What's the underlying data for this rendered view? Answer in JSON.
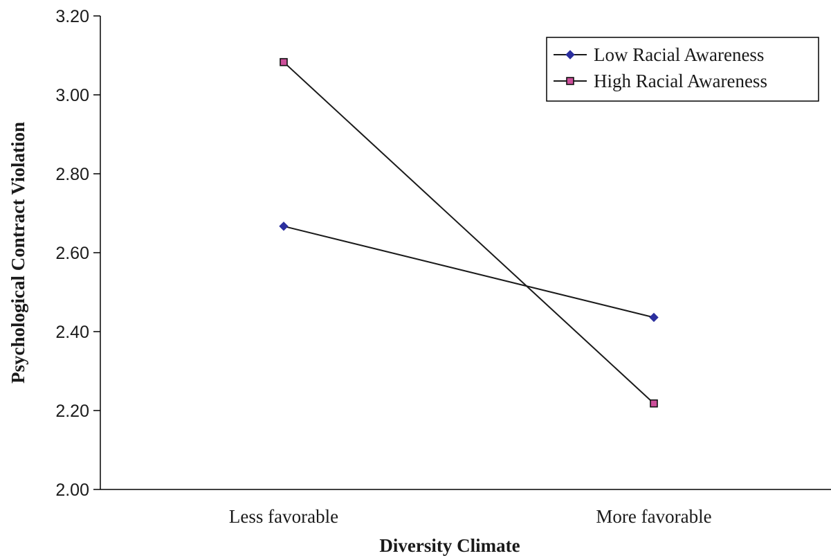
{
  "chart_data": {
    "type": "line",
    "title": "",
    "xlabel": "Diversity Climate",
    "ylabel": "Psychological Contract Violation",
    "categories": [
      "Less favorable",
      "More favorable"
    ],
    "ylim": [
      2.0,
      3.2
    ],
    "yticks": [
      "2.00",
      "2.20",
      "2.40",
      "2.60",
      "2.80",
      "3.00",
      "3.20"
    ],
    "grid": false,
    "legend_position": "top-right",
    "series": [
      {
        "name": "Low Racial Awareness",
        "marker": "diamond",
        "color": "#2b2f9e",
        "values": [
          2.667,
          2.436
        ]
      },
      {
        "name": "High Racial Awareness",
        "marker": "square",
        "color": "#cc4f9a",
        "values": [
          3.083,
          2.218
        ]
      }
    ]
  }
}
